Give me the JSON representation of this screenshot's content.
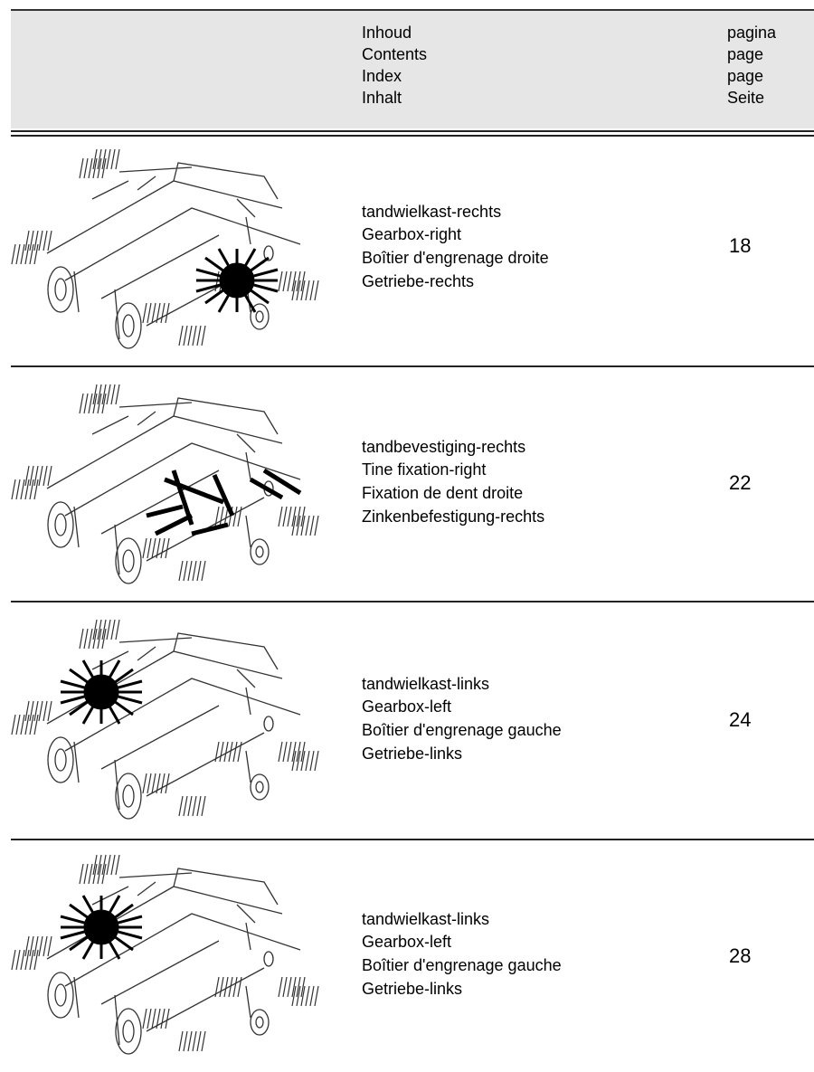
{
  "header": {
    "title_lines": [
      "Inhoud",
      "Contents",
      "Index",
      "Inhalt"
    ],
    "page_lines": [
      "pagina",
      "page",
      "page",
      "Seite"
    ]
  },
  "rows": [
    {
      "lines": [
        "tandwielkast-rechts",
        "Gearbox-right",
        "Boîtier d'engrenage droite",
        "Getriebe-rechts"
      ],
      "page": "18"
    },
    {
      "lines": [
        "tandbevestiging-rechts",
        "Tine fixation-right",
        "Fixation de dent droite",
        "Zinkenbefestigung-rechts"
      ],
      "page": "22"
    },
    {
      "lines": [
        "tandwielkast-links",
        "Gearbox-left",
        "Boîtier d'engrenage gauche",
        "Getriebe-links"
      ],
      "page": "24"
    },
    {
      "lines": [
        "tandwielkast-links",
        "Gearbox-left",
        "Boîtier d'engrenage gauche",
        "Getriebe-links"
      ],
      "page": "28"
    }
  ]
}
